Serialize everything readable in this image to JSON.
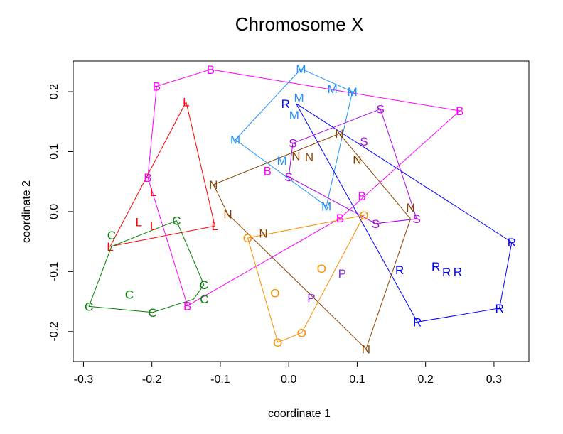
{
  "chart_data": {
    "type": "scatter",
    "title": "Chromosome X",
    "xlabel": "coordinate 1",
    "ylabel": "coordinate 2",
    "xlim": [
      -0.315,
      0.351
    ],
    "ylim": [
      -0.25,
      0.251
    ],
    "xticks": [
      -0.3,
      -0.2,
      -0.1,
      0.0,
      0.1,
      0.2,
      0.3
    ],
    "xtick_labels": [
      "-0.3",
      "-0.2",
      "-0.1",
      "0.0",
      "0.1",
      "0.2",
      "0.3"
    ],
    "yticks": [
      -0.2,
      -0.1,
      0.0,
      0.1,
      0.2
    ],
    "ytick_labels": [
      "-0.2",
      "-0.1",
      "0.0",
      "0.1",
      "0.2"
    ],
    "grid": false,
    "hulls": "convex hull drawn around each group",
    "groups": [
      {
        "label": "B",
        "color": "#FF00FF",
        "points": [
          [
            -0.193,
            0.209
          ],
          [
            -0.114,
            0.237
          ],
          [
            0.25,
            0.168
          ],
          [
            -0.206,
            0.057
          ],
          [
            -0.031,
            0.068
          ],
          [
            0.107,
            0.026
          ],
          [
            0.075,
            -0.011
          ],
          [
            -0.148,
            -0.157
          ]
        ]
      },
      {
        "label": "L",
        "color": "#FF0000",
        "points": [
          [
            -0.15,
            0.183
          ],
          [
            -0.198,
            0.033
          ],
          [
            -0.219,
            -0.017
          ],
          [
            -0.198,
            -0.023
          ],
          [
            -0.108,
            -0.024
          ],
          [
            -0.261,
            -0.058
          ]
        ]
      },
      {
        "label": "C",
        "color": "#008000",
        "points": [
          [
            -0.164,
            -0.015
          ],
          [
            -0.259,
            -0.058
          ],
          [
            -0.124,
            -0.122
          ],
          [
            -0.139,
            -0.146
          ],
          [
            -0.233,
            -0.138
          ],
          [
            -0.292,
            -0.158
          ],
          [
            -0.199,
            -0.168
          ]
        ]
      },
      {
        "label": "M",
        "color": "#1E90FF",
        "points": [
          [
            0.018,
            0.238
          ],
          [
            0.064,
            0.205
          ],
          [
            0.093,
            0.2
          ],
          [
            0.015,
            0.19
          ],
          [
            0.008,
            0.18
          ],
          [
            -0.078,
            0.12
          ],
          [
            -0.01,
            0.085
          ],
          [
            0.055,
            0.009
          ]
        ]
      },
      {
        "label": "R",
        "color": "#0000FF",
        "points": [
          [
            0.011,
            0.18
          ],
          [
            0.326,
            -0.051
          ],
          [
            0.308,
            -0.161
          ],
          [
            0.188,
            -0.184
          ],
          [
            0.162,
            -0.097
          ],
          [
            0.215,
            -0.091
          ],
          [
            0.215,
            -0.101
          ],
          [
            0.247,
            -0.1
          ]
        ]
      },
      {
        "label": "S",
        "color": "#B000E8",
        "points": [
          [
            0.134,
            0.171
          ],
          [
            0.006,
            0.114
          ],
          [
            0.11,
            0.117
          ],
          [
            0.0,
            0.058
          ],
          [
            0.127,
            -0.02
          ],
          [
            0.187,
            -0.012
          ]
        ]
      },
      {
        "label": "N",
        "color": "#8B4500",
        "points": [
          [
            0.074,
            0.13
          ],
          [
            -0.11,
            0.045
          ],
          [
            -0.089,
            -0.004
          ],
          [
            -0.005,
            0.074
          ],
          [
            0.03,
            0.091
          ],
          [
            0.1,
            0.087
          ],
          [
            -0.037,
            -0.036
          ],
          [
            0.178,
            -0.012
          ],
          [
            0.113,
            -0.229
          ]
        ]
      },
      {
        "label": "O",
        "color": "#FF8C00",
        "points": [
          [
            0.11,
            -0.006
          ],
          [
            -0.06,
            -0.044
          ],
          [
            0.048,
            -0.095
          ],
          [
            -0.02,
            -0.136
          ],
          [
            0.019,
            -0.202
          ],
          [
            -0.016,
            -0.218
          ]
        ]
      },
      {
        "label": "P",
        "color": "#8A2BE2",
        "points": [
          [
            0.078,
            -0.103
          ],
          [
            0.033,
            -0.144
          ]
        ]
      }
    ]
  }
}
